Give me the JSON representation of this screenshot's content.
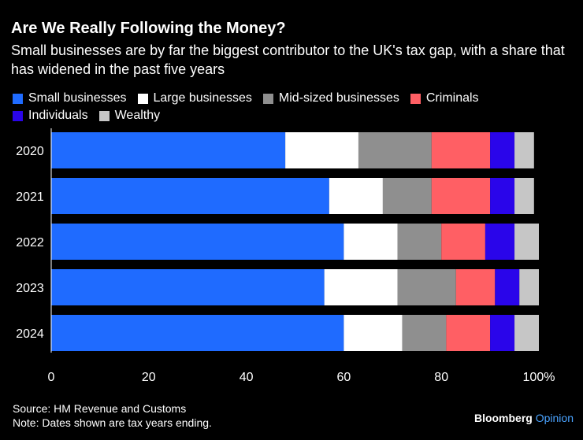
{
  "header": {
    "title": "Are We Really Following the Money?",
    "subtitle": "Small businesses are by far the biggest contributor to the UK's tax gap, with a share that has widened in the past five years"
  },
  "footer": {
    "source": "Source: HM Revenue and Customs",
    "note": "Note: Dates shown are tax years ending."
  },
  "brand": {
    "name": "Bloomberg",
    "suffix": "Opinion"
  },
  "chart_data": {
    "type": "bar",
    "orientation": "horizontal",
    "stacked": true,
    "title": "Are We Really Following the Money?",
    "categories": [
      "2020",
      "2021",
      "2022",
      "2023",
      "2024"
    ],
    "series": [
      {
        "name": "Small businesses",
        "color": "#1f6bff",
        "values": [
          48,
          57,
          60,
          56,
          60
        ]
      },
      {
        "name": "Large businesses",
        "color": "#ffffff",
        "values": [
          15,
          11,
          11,
          15,
          12
        ]
      },
      {
        "name": "Mid-sized businesses",
        "color": "#8f8f8f",
        "values": [
          15,
          10,
          9,
          12,
          9
        ]
      },
      {
        "name": "Criminals",
        "color": "#ff5f64",
        "values": [
          12,
          12,
          9,
          8,
          9
        ]
      },
      {
        "name": "Individuals",
        "color": "#2a05ea",
        "values": [
          5,
          5,
          6,
          5,
          5
        ]
      },
      {
        "name": "Wealthy",
        "color": "#c6c6c6",
        "values": [
          4,
          4,
          5,
          4,
          5
        ]
      }
    ],
    "xlim": [
      0,
      100
    ],
    "xticks": [
      0,
      20,
      40,
      60,
      80,
      100
    ],
    "xtick_labels": [
      "0",
      "20",
      "40",
      "60",
      "80",
      "100%"
    ],
    "xlabel": "",
    "ylabel": "",
    "legend_position": "top-left"
  }
}
